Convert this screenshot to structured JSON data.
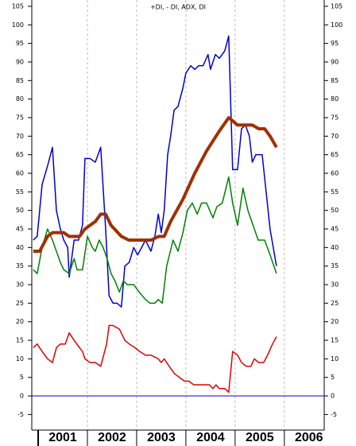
{
  "chart_data": {
    "type": "line",
    "title": "+DI, - DI, ADX, DI",
    "xlim": [
      2000.87,
      2006.81
    ],
    "xticks": [
      2001,
      2002,
      2003,
      2004,
      2005,
      2006
    ],
    "ylim": [
      -9.2,
      106.7
    ],
    "yticks": [
      -5,
      0,
      5,
      10,
      15,
      20,
      25,
      30,
      35,
      40,
      45,
      50,
      55,
      60,
      65,
      70,
      75,
      80,
      85,
      90,
      95,
      100,
      105
    ],
    "y2lim": [
      -9.2,
      106.7
    ],
    "y2ticks": [
      -5,
      0,
      5,
      10,
      15,
      20,
      25,
      30,
      35,
      40,
      45,
      50,
      55,
      60,
      65,
      70,
      75,
      80,
      85,
      90,
      95,
      100,
      105
    ],
    "grid": true,
    "zero_line": 0,
    "series": [
      {
        "color": "#0000cc",
        "width": 1.5,
        "x": [
          2000.9,
          2000.98,
          2001.08,
          2001.19,
          2001.29,
          2001.37,
          2001.45,
          2001.52,
          2001.6,
          2001.63,
          2001.73,
          2001.82,
          2001.9,
          2001.95,
          2002.05,
          2002.16,
          2002.27,
          2002.37,
          2002.44,
          2002.52,
          2002.6,
          2002.69,
          2002.76,
          2002.85,
          2002.94,
          2003.02,
          2003.1,
          2003.18,
          2003.29,
          2003.37,
          2003.44,
          2003.5,
          2003.56,
          2003.63,
          2003.69,
          2003.76,
          2003.84,
          2003.94,
          2004.0,
          2004.1,
          2004.18,
          2004.26,
          2004.35,
          2004.45,
          2004.5,
          2004.6,
          2004.68,
          2004.79,
          2004.87,
          2004.95,
          2005.05,
          2005.13,
          2005.21,
          2005.29,
          2005.35,
          2005.42,
          2005.55,
          2005.63,
          2005.71,
          2005.84
        ],
        "values": [
          42,
          43,
          57,
          62,
          67,
          50,
          45,
          42,
          40,
          32,
          42,
          42,
          46,
          64,
          64,
          63,
          67,
          45,
          27,
          25,
          25,
          24,
          35,
          36,
          40,
          38,
          40,
          42,
          39,
          43,
          49,
          44,
          50,
          65,
          70,
          77,
          78,
          83,
          87,
          89,
          88,
          89,
          89,
          92,
          88,
          92,
          91,
          93,
          97,
          61,
          61,
          72,
          73,
          70,
          63,
          65,
          65,
          55,
          45,
          35
        ]
      },
      {
        "color": "#008000",
        "width": 1.5,
        "x": [
          2000.9,
          2000.98,
          2001.08,
          2001.19,
          2001.29,
          2001.37,
          2001.45,
          2001.52,
          2001.63,
          2001.73,
          2001.79,
          2001.9,
          2002.0,
          2002.1,
          2002.16,
          2002.24,
          2002.32,
          2002.4,
          2002.48,
          2002.56,
          2002.65,
          2002.73,
          2002.81,
          2002.94,
          2003.05,
          2003.18,
          2003.27,
          2003.37,
          2003.44,
          2003.52,
          2003.61,
          2003.74,
          2003.84,
          2003.94,
          2004.03,
          2004.13,
          2004.23,
          2004.32,
          2004.42,
          2004.55,
          2004.63,
          2004.74,
          2004.87,
          2004.95,
          2005.05,
          2005.16,
          2005.26,
          2005.39,
          2005.47,
          2005.6,
          2005.71,
          2005.84
        ],
        "values": [
          34,
          33,
          40,
          45,
          42,
          39,
          36,
          34,
          33,
          37,
          34,
          34,
          43,
          40,
          39,
          42,
          40,
          37,
          33,
          31,
          28,
          31,
          30,
          30,
          28,
          26,
          25,
          25,
          26,
          25,
          35,
          42,
          39,
          44,
          50,
          52,
          49,
          52,
          52,
          48,
          51,
          52,
          59,
          52,
          46,
          56,
          50,
          45,
          42,
          42,
          38,
          33
        ]
      },
      {
        "color": "#a03000",
        "width": 4,
        "x": [
          2000.9,
          2001.03,
          2001.19,
          2001.29,
          2001.52,
          2001.63,
          2001.84,
          2001.95,
          2002.16,
          2002.27,
          2002.37,
          2002.48,
          2002.69,
          2002.84,
          2003.05,
          2003.29,
          2003.45,
          2003.56,
          2003.69,
          2003.94,
          2004.18,
          2004.42,
          2004.66,
          2004.87,
          2005.05,
          2005.23,
          2005.35,
          2005.48,
          2005.6,
          2005.71,
          2005.84
        ],
        "values": [
          39,
          39,
          43,
          44,
          44,
          43,
          43,
          45,
          47,
          49,
          49,
          46,
          43,
          42,
          42,
          42,
          43,
          43,
          47,
          53,
          60,
          66,
          71,
          75,
          73,
          73,
          73,
          72,
          72,
          70,
          67
        ]
      },
      {
        "color": "#e00000",
        "width": 1.5,
        "x": [
          2000.9,
          2000.98,
          2001.08,
          2001.19,
          2001.29,
          2001.37,
          2001.45,
          2001.55,
          2001.63,
          2001.73,
          2001.84,
          2001.9,
          2001.95,
          2002.05,
          2002.16,
          2002.27,
          2002.39,
          2002.44,
          2002.52,
          2002.65,
          2002.76,
          2002.85,
          2002.97,
          2003.06,
          2003.18,
          2003.29,
          2003.44,
          2003.5,
          2003.56,
          2003.66,
          2003.77,
          2003.87,
          2003.97,
          2004.06,
          2004.16,
          2004.26,
          2004.39,
          2004.48,
          2004.55,
          2004.61,
          2004.68,
          2004.79,
          2004.87,
          2004.95,
          2005.05,
          2005.13,
          2005.23,
          2005.32,
          2005.39,
          2005.48,
          2005.58,
          2005.66,
          2005.76,
          2005.84
        ],
        "values": [
          13,
          14,
          12,
          10,
          9,
          13,
          14,
          14,
          17,
          15,
          13,
          12,
          10,
          9,
          9,
          8,
          14,
          19,
          19,
          18,
          15,
          14,
          13,
          12,
          11,
          11,
          10,
          9,
          10,
          8,
          6,
          5,
          4,
          4,
          3,
          3,
          3,
          3,
          2,
          3,
          2,
          2,
          1,
          12,
          11,
          9,
          8,
          8,
          10,
          9,
          9,
          11,
          14,
          16
        ]
      }
    ]
  }
}
